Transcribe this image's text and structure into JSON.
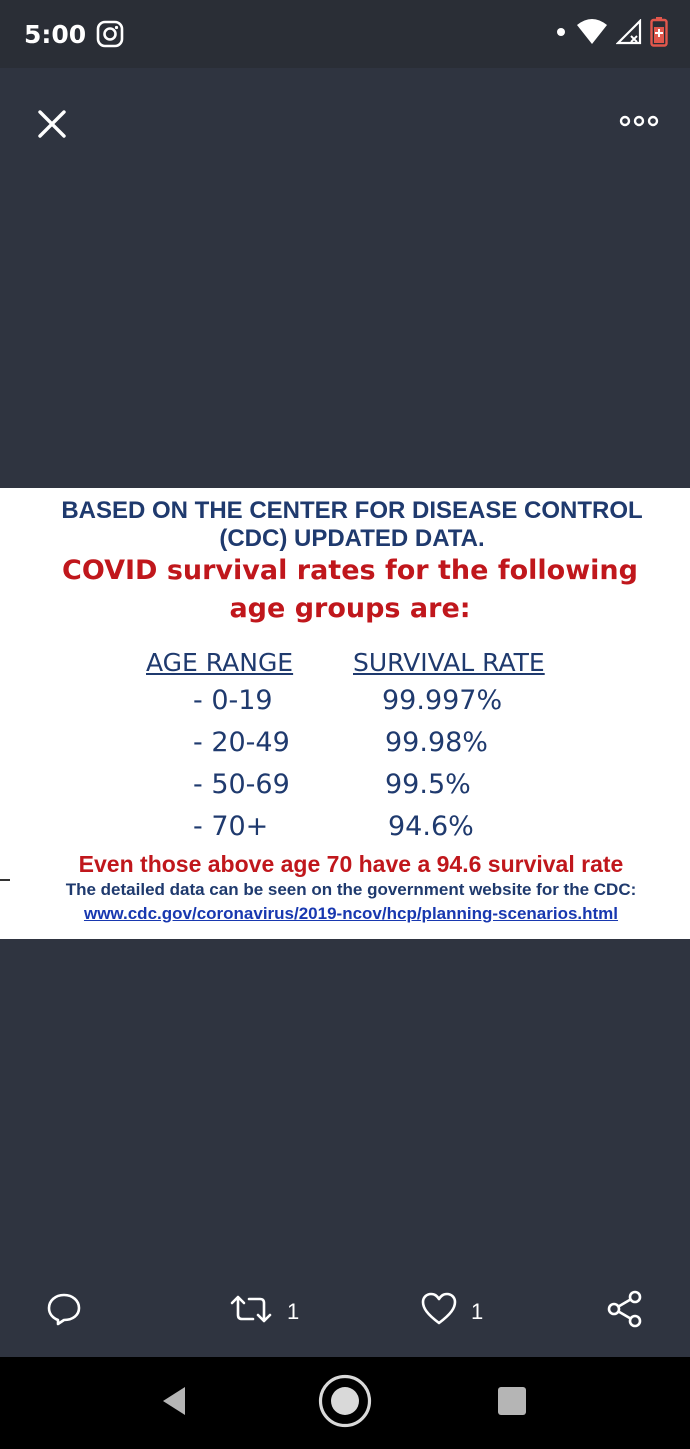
{
  "status_bar": {
    "time": "5:00",
    "icons": [
      "instagram-icon",
      "notification-dot-icon",
      "wifi-icon",
      "cell-signal-icon",
      "battery-icon"
    ],
    "battery_color": "#e2574c"
  },
  "viewer": {
    "background": "#2f3440",
    "close_icon": "close-icon",
    "more_icon": "more-options-icon"
  },
  "image": {
    "headline_lines": [
      "BASED ON THE CENTER FOR DISEASE CONTROL",
      "(CDC) UPDATED DATA."
    ],
    "subhead_lines": [
      "COVID survival rates for the following",
      "age groups are:"
    ],
    "table": {
      "headers": [
        "AGE RANGE",
        "SURVIVAL RATE"
      ],
      "rows": [
        {
          "age": "-   0-19",
          "rate": "99.997%"
        },
        {
          "age": "- 20-49",
          "rate": "99.98%"
        },
        {
          "age": "- 50-69",
          "rate": "99.5%"
        },
        {
          "age": "- 70+",
          "rate": "94.6%"
        }
      ]
    },
    "note": "Even those above age 70 have a 94.6 survival rate",
    "source_text": "The detailed data can be seen on the government website for the CDC:",
    "source_link": "www.cdc.gov/coronavirus/2019-ncov/hcp/planning-scenarios.html",
    "colors": {
      "navy": "#1f3a6e",
      "red": "#c0171c",
      "link": "#1838b0"
    }
  },
  "actions": {
    "reply_icon": "reply-icon",
    "retweet_icon": "retweet-icon",
    "retweet_count": "1",
    "like_icon": "heart-icon",
    "like_count": "1",
    "share_icon": "share-icon"
  },
  "nav": {
    "back_icon": "back-icon",
    "home_icon": "home-icon",
    "recents_icon": "recents-icon"
  }
}
